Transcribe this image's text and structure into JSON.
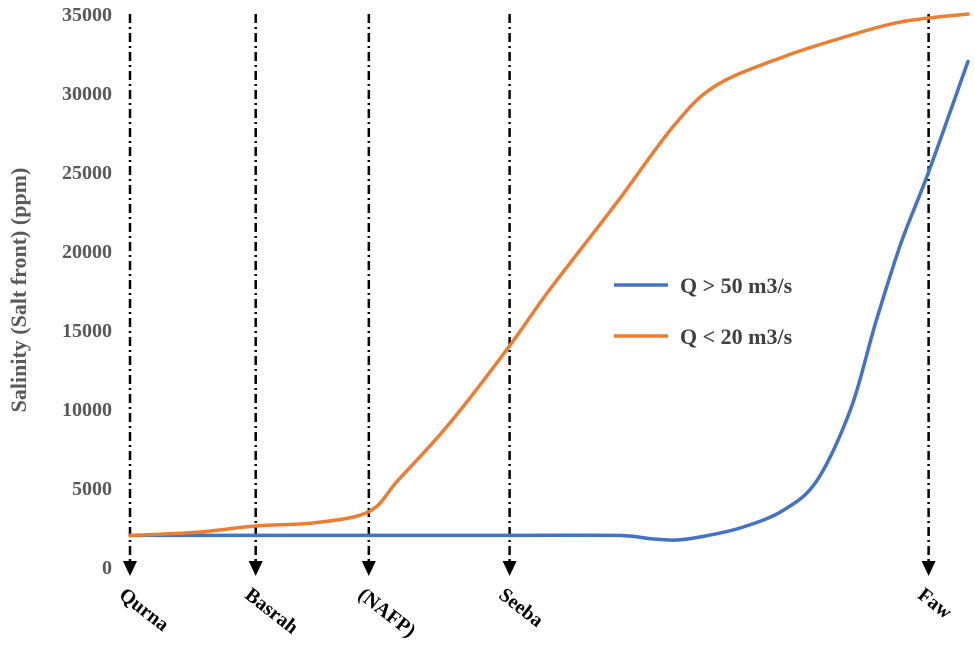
{
  "chart_data": {
    "type": "line",
    "title": "",
    "ylabel": "Salinity (Salt front) (ppm)",
    "xlabel": "",
    "ylim": [
      0,
      35000
    ],
    "yticks": [
      0,
      5000,
      10000,
      15000,
      20000,
      25000,
      30000,
      35000
    ],
    "grid": false,
    "legend_position": "right-center",
    "stations": [
      {
        "name": "Qurna",
        "x": 0
      },
      {
        "name": "Basrah",
        "x": 15
      },
      {
        "name": "(NAFP)",
        "x": 28.5
      },
      {
        "name": "Seeba",
        "x": 45.3
      },
      {
        "name": "Faw",
        "x": 95.3
      }
    ],
    "xlim": [
      0,
      100
    ],
    "series": [
      {
        "name": "Q > 50 m3/s",
        "color": "#4472C4",
        "points": [
          [
            0,
            2000
          ],
          [
            15,
            2000
          ],
          [
            28.5,
            2000
          ],
          [
            45.3,
            2000
          ],
          [
            58,
            2000
          ],
          [
            62,
            1800
          ],
          [
            65,
            1700
          ],
          [
            68,
            1900
          ],
          [
            73,
            2500
          ],
          [
            78,
            3600
          ],
          [
            82,
            5500
          ],
          [
            86,
            10000
          ],
          [
            89,
            15500
          ],
          [
            92,
            20500
          ],
          [
            95.3,
            25000
          ],
          [
            100,
            32000
          ]
        ]
      },
      {
        "name": "Q < 20 m3/s",
        "color": "#ED7D31",
        "points": [
          [
            0,
            2000
          ],
          [
            8,
            2200
          ],
          [
            15,
            2600
          ],
          [
            22,
            2800
          ],
          [
            28.5,
            3500
          ],
          [
            32,
            5500
          ],
          [
            38,
            9000
          ],
          [
            45.3,
            14000
          ],
          [
            50,
            17500
          ],
          [
            58,
            23000
          ],
          [
            65,
            28000
          ],
          [
            70,
            30500
          ],
          [
            78,
            32300
          ],
          [
            85,
            33500
          ],
          [
            92,
            34500
          ],
          [
            100,
            35000
          ]
        ]
      }
    ]
  }
}
